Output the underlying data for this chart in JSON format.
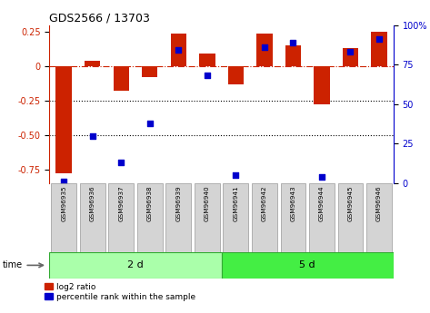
{
  "title": "GDS2566 / 13703",
  "samples": [
    "GSM96935",
    "GSM96936",
    "GSM96937",
    "GSM96938",
    "GSM96939",
    "GSM96940",
    "GSM96941",
    "GSM96942",
    "GSM96943",
    "GSM96944",
    "GSM96945",
    "GSM96946"
  ],
  "log2_ratio": [
    -0.78,
    0.04,
    -0.18,
    -0.08,
    0.24,
    0.09,
    -0.13,
    0.24,
    0.15,
    -0.28,
    0.13,
    0.25
  ],
  "percentile_rank": [
    1,
    30,
    13,
    38,
    84,
    68,
    5,
    86,
    89,
    4,
    83,
    91
  ],
  "groups": [
    {
      "label": "2 d",
      "start": 0,
      "end": 6,
      "color": "#aaffaa"
    },
    {
      "label": "5 d",
      "start": 6,
      "end": 12,
      "color": "#44ee44"
    }
  ],
  "bar_color": "#cc2200",
  "dot_color": "#0000cc",
  "ylim_left": [
    -0.85,
    0.3
  ],
  "ylim_right": [
    0,
    100
  ],
  "yticks_left": [
    0.25,
    0.0,
    -0.25,
    -0.5,
    -0.75
  ],
  "yticks_right": [
    100,
    75,
    50,
    25,
    0
  ],
  "background_color": "#ffffff",
  "left_axis_color": "#cc2200",
  "right_axis_color": "#0000cc",
  "time_label": "time",
  "legend_red": "log2 ratio",
  "legend_blue": "percentile rank within the sample",
  "bar_width": 0.55,
  "dot_size": 18
}
